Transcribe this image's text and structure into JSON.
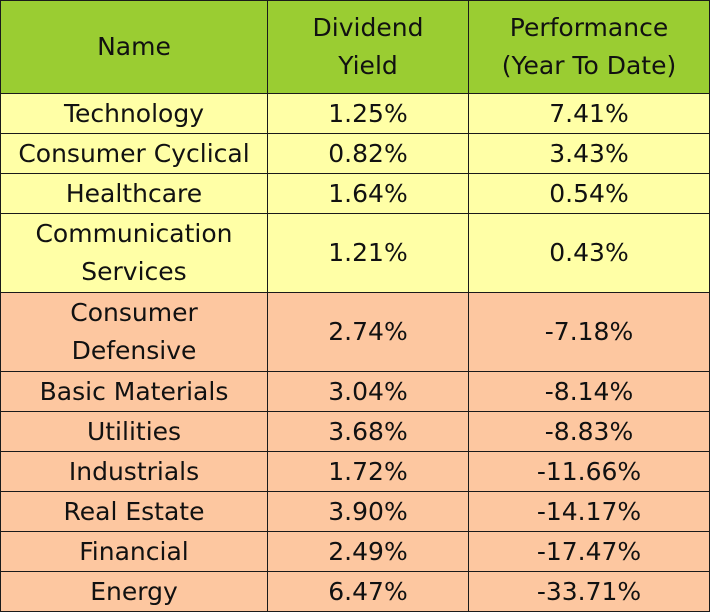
{
  "table": {
    "headers": {
      "name": "Name",
      "yield_line1": "Dividend",
      "yield_line2": "Yield",
      "perf_line1": "Performance",
      "perf_line2": "(Year To Date)"
    },
    "colors": {
      "header": "#9acd32",
      "positive_rows": "#ffffa6",
      "negative_rows": "#fdc7a0"
    },
    "rows": [
      {
        "name": "Technology",
        "yield": "1.25%",
        "performance": "7.41%"
      },
      {
        "name": "Consumer Cyclical",
        "yield": "0.82%",
        "performance": "3.43%"
      },
      {
        "name": "Healthcare",
        "yield": "1.64%",
        "performance": "0.54%"
      },
      {
        "name_line1": "Communication",
        "name_line2": "Services",
        "yield": "1.21%",
        "performance": "0.43%"
      },
      {
        "name_line1": "Consumer",
        "name_line2": "Defensive",
        "yield": "2.74%",
        "performance": "-7.18%"
      },
      {
        "name": "Basic Materials",
        "yield": "3.04%",
        "performance": "-8.14%"
      },
      {
        "name": "Utilities",
        "yield": "3.68%",
        "performance": "-8.83%"
      },
      {
        "name": "Industrials",
        "yield": "1.72%",
        "performance": "-11.66%"
      },
      {
        "name": "Real Estate",
        "yield": "3.90%",
        "performance": "-14.17%"
      },
      {
        "name": "Financial",
        "yield": "2.49%",
        "performance": "-17.47%"
      },
      {
        "name": "Energy",
        "yield": "6.47%",
        "performance": "-33.71%"
      }
    ]
  }
}
